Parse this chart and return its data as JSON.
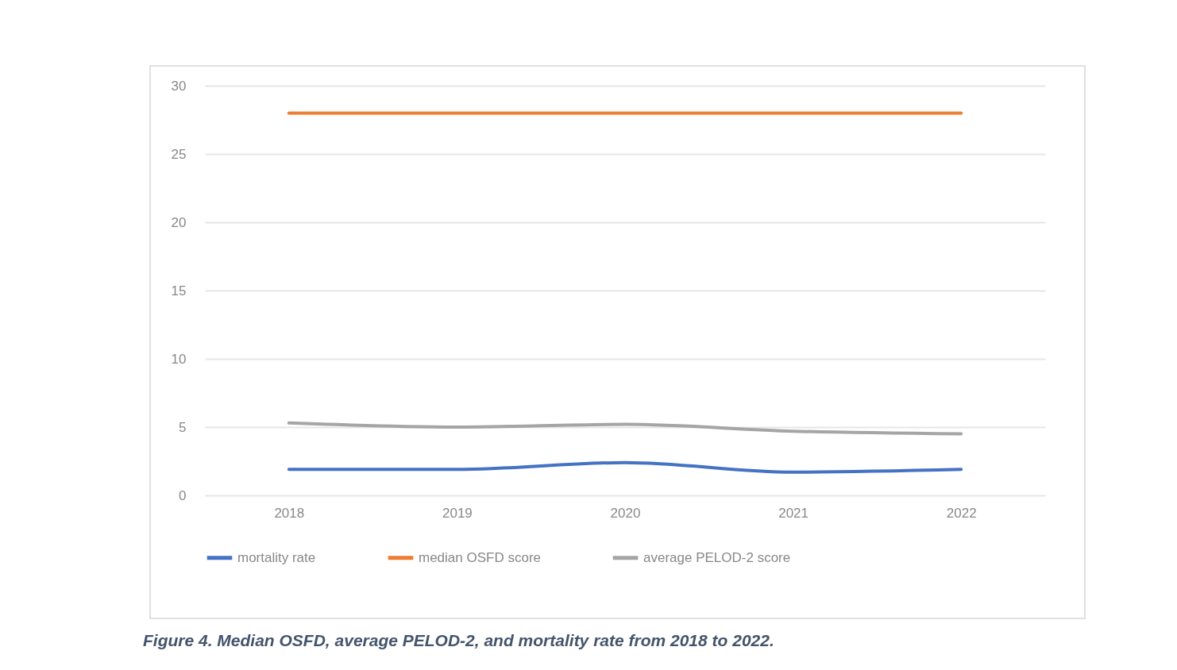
{
  "chart_data": {
    "type": "line",
    "categories": [
      "2018",
      "2019",
      "2020",
      "2021",
      "2022"
    ],
    "series": [
      {
        "name": "mortality rate",
        "color": "#4472c4",
        "values": [
          1.9,
          1.9,
          2.4,
          1.7,
          1.9
        ]
      },
      {
        "name": "median OSFD score",
        "color": "#ed7d31",
        "values": [
          28,
          28,
          28,
          28,
          28
        ]
      },
      {
        "name": "average PELOD-2 score",
        "color": "#a5a5a5",
        "values": [
          5.3,
          5.0,
          5.2,
          4.7,
          4.5
        ]
      }
    ],
    "ylim": [
      0,
      30
    ],
    "yticks": [
      0,
      5,
      10,
      15,
      20,
      25,
      30
    ],
    "grid": "y",
    "legend": "bottom",
    "marker": "none",
    "line_style": "solid",
    "annotations": [
      "Figure 4. Median OSFD, average PELOD-2, and mortality rate from 2018 to 2022."
    ]
  }
}
